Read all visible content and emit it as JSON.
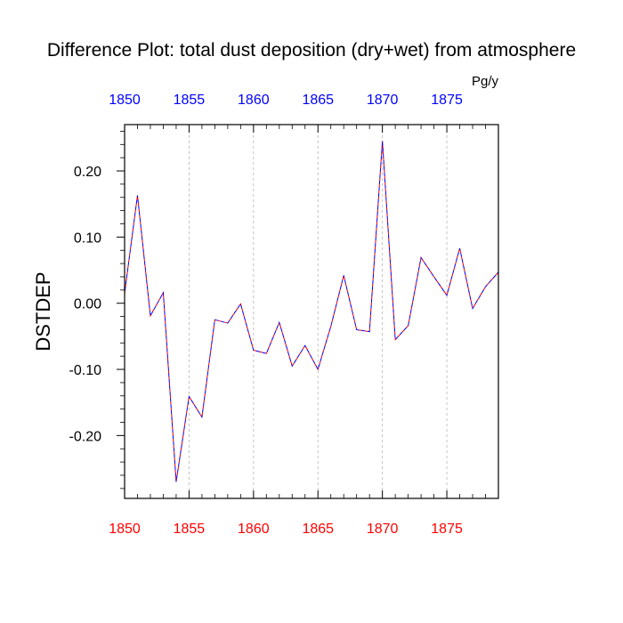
{
  "chart_data": {
    "type": "line",
    "title": "Difference Plot: total dust deposition (dry+wet) from atmosphere",
    "units": "Pg/y",
    "ylabel": "DSTDEP",
    "xlabel": "",
    "xlim": [
      1850,
      1879
    ],
    "ylim": [
      -0.295,
      0.27
    ],
    "x_ticks": [
      "1850",
      "1855",
      "1860",
      "1865",
      "1870",
      "1875"
    ],
    "y_ticks": [
      "0.20",
      "0.10",
      "0.00",
      "-0.10",
      "-0.20"
    ],
    "grid": "vertical dashed at major x ticks",
    "bottom_axis_color": "#ff0000",
    "top_axis_color": "#0000ff",
    "line_color": "#7a3fbf",
    "series": [
      {
        "x": [
          1850,
          1851,
          1852,
          1853,
          1854,
          1855,
          1856,
          1857,
          1858,
          1859,
          1860,
          1861,
          1862,
          1863,
          1864,
          1865,
          1866,
          1867,
          1868,
          1869,
          1870,
          1871,
          1872,
          1873,
          1874,
          1875,
          1876,
          1877,
          1878,
          1879
        ],
        "values": [
          0.015,
          0.163,
          -0.019,
          0.016,
          -0.27,
          -0.141,
          -0.172,
          -0.025,
          -0.03,
          -0.001,
          -0.071,
          -0.076,
          -0.029,
          -0.095,
          -0.064,
          -0.1,
          -0.035,
          0.042,
          -0.04,
          -0.043,
          0.245,
          -0.055,
          -0.034,
          0.069,
          0.04,
          0.012,
          0.083,
          -0.008,
          0.025,
          0.047
        ]
      }
    ]
  }
}
